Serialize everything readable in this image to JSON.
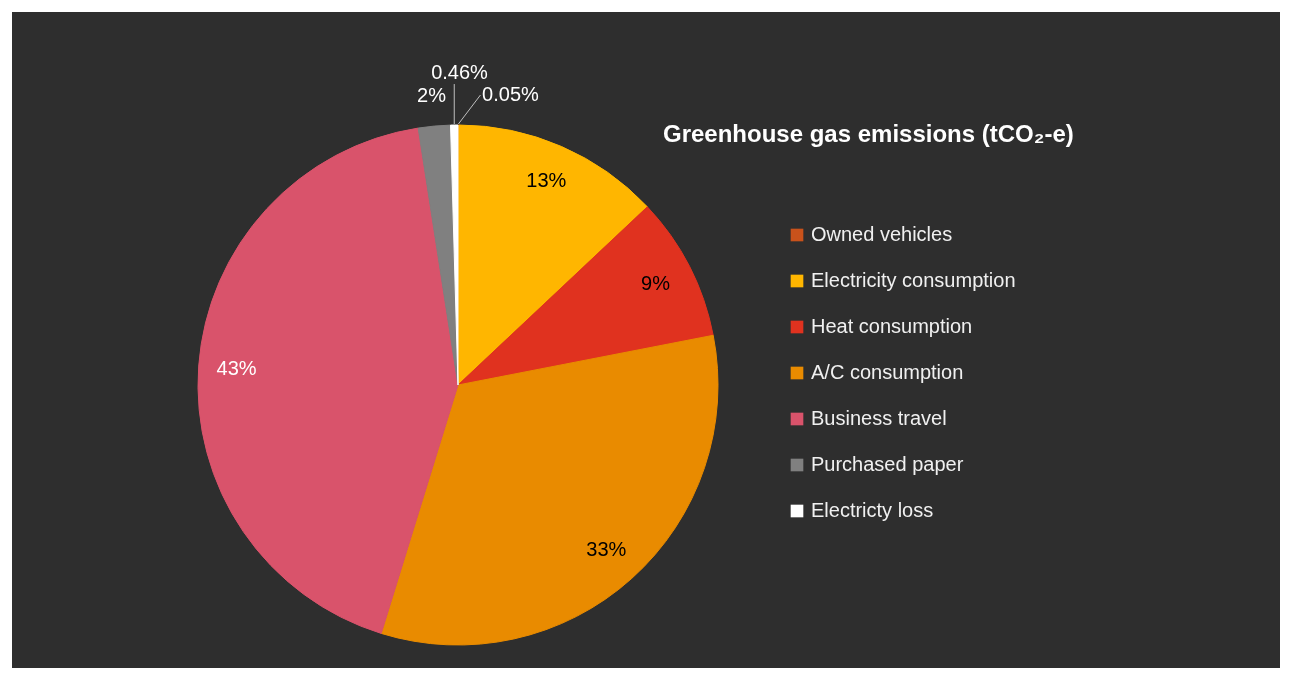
{
  "chart_data": {
    "type": "pie",
    "title": "Greenhouse gas emissions (tCO₂-e)",
    "categories": [
      "Owned vehicles",
      "Electricity consumption",
      "Heat consumption",
      "A/C consumption",
      "Business travel",
      "Purchased paper",
      "Electricty loss"
    ],
    "values": [
      0.05,
      13,
      9,
      33,
      43,
      2,
      0.46
    ],
    "colors": [
      "#c9521b",
      "#ffb600",
      "#e0321f",
      "#e98b00",
      "#d9536b",
      "#808080",
      "#ffffff"
    ],
    "value_labels": [
      "0.05%",
      "13%",
      "9%",
      "33%",
      "43%",
      "2%",
      "0.46%"
    ],
    "legend": "right"
  }
}
